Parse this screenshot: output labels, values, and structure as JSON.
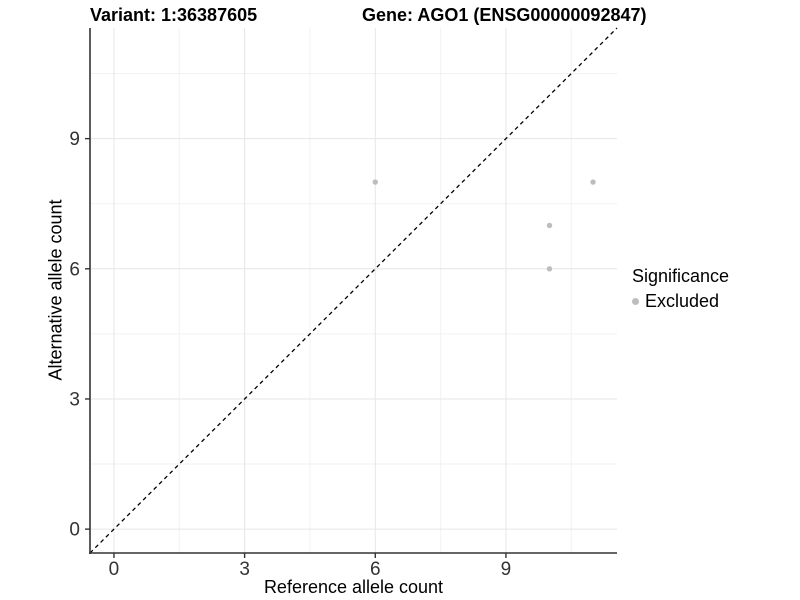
{
  "titles": {
    "variant": "Variant: 1:36387605",
    "gene": "Gene: AGO1 (ENSG00000092847)"
  },
  "legend": {
    "title": "Significance",
    "items": [
      {
        "label": "Excluded",
        "color": "#bdbdbd"
      }
    ]
  },
  "chart_data": {
    "type": "scatter",
    "title_left": "Variant: 1:36387605",
    "title_right": "Gene: AGO1 (ENSG00000092847)",
    "xlabel": "Reference allele count",
    "ylabel": "Alternative allele count",
    "xlim": [
      -0.55,
      11.55
    ],
    "ylim": [
      -0.55,
      11.55
    ],
    "x_ticks": [
      0,
      3,
      6,
      9
    ],
    "y_ticks": [
      0,
      3,
      6,
      9
    ],
    "x_minor_ticks": [
      1.5,
      4.5,
      7.5,
      10.5
    ],
    "y_minor_ticks": [
      1.5,
      4.5,
      7.5,
      10.5
    ],
    "series": [
      {
        "name": "Excluded",
        "color": "#bdbdbd",
        "points": [
          {
            "x": 6,
            "y": 8
          },
          {
            "x": 10,
            "y": 7
          },
          {
            "x": 10,
            "y": 6
          },
          {
            "x": 11,
            "y": 8
          }
        ]
      }
    ],
    "identity_line": {
      "slope": 1,
      "intercept": 0,
      "style": "dashed",
      "color": "#000000"
    },
    "grid": {
      "major_color": "#e6e6e6",
      "minor_color": "#f2f2f2",
      "background": "#ffffff"
    },
    "axis_color": "#333333",
    "legend_position": "right"
  }
}
